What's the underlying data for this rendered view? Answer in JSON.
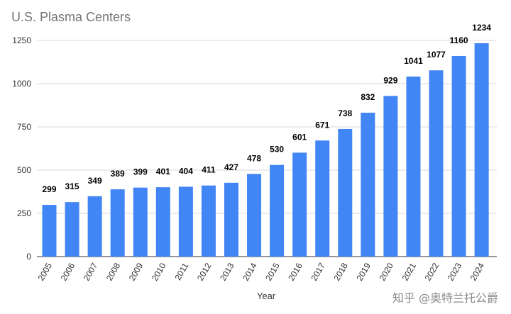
{
  "chart_data": {
    "type": "bar",
    "title": "U.S. Plasma Centers",
    "xlabel": "Year",
    "ylabel": "",
    "ylim": [
      0,
      1250
    ],
    "yticks": [
      0,
      250,
      500,
      750,
      1000,
      1250
    ],
    "grid": true,
    "legend": "none",
    "bar_color": "#4285f4",
    "categories": [
      "2005",
      "2006",
      "2007",
      "2008",
      "2009",
      "2010",
      "2011",
      "2012",
      "2013",
      "2014",
      "2015",
      "2016",
      "2017",
      "2018",
      "2019",
      "2020",
      "2021",
      "2022",
      "2023",
      "2024"
    ],
    "values": [
      299,
      315,
      349,
      389,
      399,
      401,
      404,
      411,
      427,
      478,
      530,
      601,
      671,
      738,
      832,
      929,
      1041,
      1077,
      1160,
      1234
    ]
  },
  "watermark": "知乎 @奥特兰托公爵"
}
